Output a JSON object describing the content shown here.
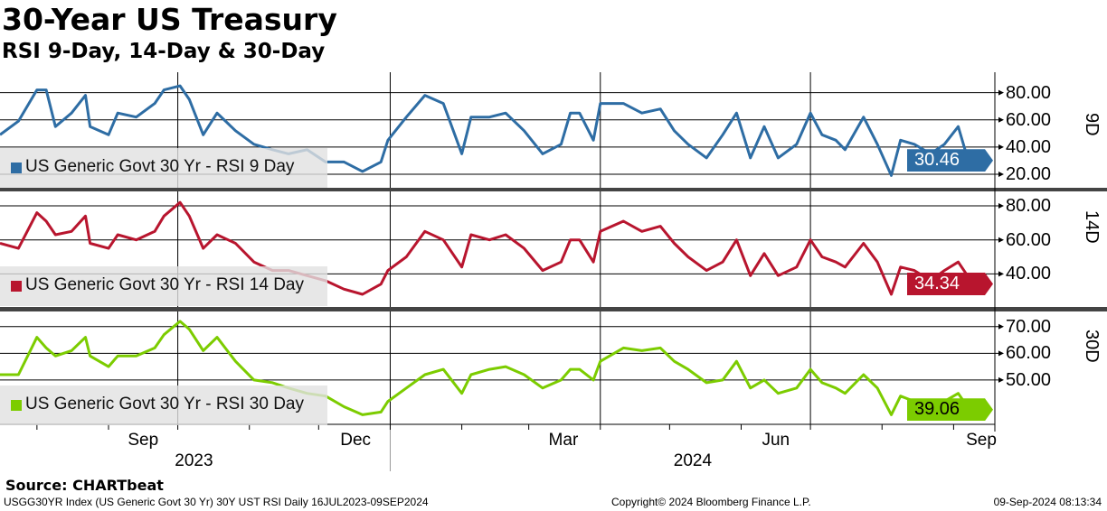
{
  "title": "30-Year US Treasury",
  "subtitle": "RSI 9-Day, 14-Day & 30-Day",
  "source": "Source: CHARTbeat",
  "footer": {
    "left": "USGG30YR Index (US Generic Govt 30 Yr) 30Y UST RSI  Daily 16JUL2023-09SEP2024",
    "center": "Copyright© 2024 Bloomberg Finance L.P.",
    "right": "09-Sep-2024 08:13:34"
  },
  "chart_data": {
    "type": "line",
    "x_unit": "days since 16 Jul 2023",
    "x_range": [
      0,
      431
    ],
    "x": [
      0,
      8,
      16,
      20,
      24,
      31,
      37,
      39,
      47,
      51,
      59,
      67,
      71,
      78,
      82,
      88,
      94,
      102,
      110,
      118,
      125,
      133,
      141,
      149,
      157,
      165,
      168,
      176,
      184,
      192,
      200,
      204,
      212,
      219,
      227,
      235,
      243,
      247,
      251,
      257,
      260,
      270,
      278,
      286,
      292,
      298,
      306,
      313,
      319,
      325,
      331,
      337,
      345,
      351,
      356,
      362,
      366,
      374,
      380,
      386,
      390,
      396,
      403,
      409,
      415,
      419,
      421
    ],
    "x_month_labels": [
      {
        "label": "Sep",
        "day": 62
      },
      {
        "label": "Dec",
        "day": 154
      },
      {
        "label": "Mar",
        "day": 244
      },
      {
        "label": "Jun",
        "day": 336
      },
      {
        "label": "Sep",
        "day": 425
      }
    ],
    "x_year_labels": [
      {
        "label": "2023",
        "day": 84
      },
      {
        "label": "2024",
        "day": 300
      }
    ],
    "panels": [
      {
        "name": "US Generic Govt 30 Yr - RSI 9 Day",
        "short": "9D",
        "color": "#2e6da4",
        "ylim": [
          10,
          95
        ],
        "ticks": [
          "80.00",
          "60.00",
          "40.00",
          "20.00"
        ],
        "tick_values": [
          80,
          60,
          40,
          20
        ],
        "last": "30.46",
        "values": [
          49,
          59,
          82,
          82,
          55,
          65,
          78,
          55,
          49,
          65,
          62,
          72,
          82,
          85,
          75,
          49,
          65,
          52,
          42,
          38,
          35,
          38,
          29,
          29,
          22,
          29,
          45,
          62,
          78,
          72,
          35,
          62,
          62,
          65,
          52,
          35,
          42,
          65,
          65,
          45,
          72,
          72,
          65,
          68,
          52,
          42,
          32,
          49,
          65,
          32,
          55,
          32,
          42,
          65,
          49,
          45,
          38,
          62,
          42,
          19,
          45,
          42,
          35,
          42,
          55,
          32,
          30.46
        ]
      },
      {
        "name": "US Generic Govt 30 Yr - RSI 14 Day",
        "short": "14D",
        "color": "#b8152e",
        "ylim": [
          19.5,
          81.6
        ],
        "ticks": [
          "80.00",
          "60.00",
          "40.00"
        ],
        "tick_values": [
          80,
          60,
          40
        ],
        "last": "34.34",
        "values": [
          58,
          55,
          76,
          71,
          63,
          65,
          74,
          58,
          55,
          63,
          60,
          65,
          74,
          82,
          74,
          55,
          63,
          58,
          47,
          42,
          42,
          39,
          36,
          31,
          28,
          34,
          42,
          50,
          65,
          60,
          44,
          63,
          60,
          63,
          55,
          42,
          47,
          60,
          60,
          47,
          65,
          71,
          65,
          68,
          58,
          50,
          42,
          47,
          60,
          39,
          52,
          39,
          44,
          60,
          50,
          47,
          44,
          58,
          47,
          28,
          44,
          42,
          36,
          42,
          47,
          39,
          34.34
        ]
      },
      {
        "name": "US Generic Govt 30 Yr - RSI 30 Day",
        "short": "30D",
        "color": "#7ccc00",
        "ylim": [
          33.4,
          75
        ],
        "ticks": [
          "70.00",
          "60.00",
          "50.00"
        ],
        "tick_values": [
          70,
          60,
          50
        ],
        "last": "39.06",
        "values": [
          52,
          52,
          66,
          62,
          59,
          61,
          66,
          59,
          55,
          59,
          59,
          62,
          67,
          72,
          69,
          61,
          66,
          57,
          50,
          49,
          47,
          45,
          44,
          40,
          37,
          38,
          42,
          47,
          52,
          54,
          45,
          52,
          54,
          55,
          52,
          47,
          50,
          54,
          54,
          50,
          57,
          62,
          61,
          62,
          57,
          54,
          49,
          50,
          57,
          47,
          50,
          45,
          47,
          54,
          49,
          47,
          45,
          52,
          47,
          37,
          44,
          42,
          40,
          42,
          45,
          40,
          39.06
        ]
      }
    ]
  }
}
